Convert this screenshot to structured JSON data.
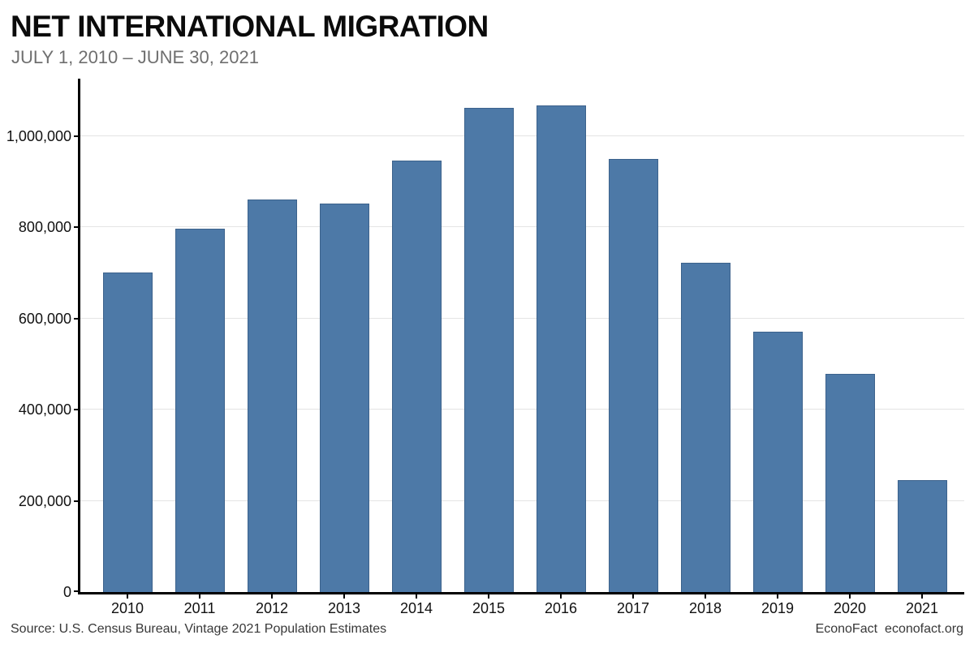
{
  "header": {
    "title": "NET INTERNATIONAL MIGRATION",
    "subtitle": "JULY 1, 2010 – JUNE 30, 2021"
  },
  "footer": {
    "source": "Source: U.S. Census Bureau, Vintage 2021 Population Estimates",
    "brand": "EconoFact",
    "site": "econofact.org"
  },
  "colors": {
    "bar": "#4d79a7",
    "bar_border": "#3c628c",
    "gridline": "#e4e4e4",
    "axis": "#000000",
    "subtitle_text": "#6f6f6f",
    "footer_text": "#383838"
  },
  "chart_data": {
    "type": "bar",
    "title": "NET INTERNATIONAL MIGRATION",
    "subtitle": "JULY 1, 2010 – JUNE 30, 2021",
    "categories": [
      "2010",
      "2011",
      "2012",
      "2013",
      "2014",
      "2015",
      "2016",
      "2017",
      "2018",
      "2019",
      "2020",
      "2021"
    ],
    "values": [
      700000,
      795000,
      860000,
      850000,
      945000,
      1060000,
      1065000,
      948000,
      720000,
      569000,
      477000,
      244000
    ],
    "xlabel": "",
    "ylabel": "",
    "ylim": [
      0,
      1124000
    ],
    "yticks": [
      {
        "value": 0,
        "label": "0"
      },
      {
        "value": 200000,
        "label": "200,000"
      },
      {
        "value": 400000,
        "label": "400,000"
      },
      {
        "value": 600000,
        "label": "600,000"
      },
      {
        "value": 800000,
        "label": "800,000"
      },
      {
        "value": 1000000,
        "label": "1,000,000"
      }
    ],
    "grid": true,
    "legend": false,
    "bar_color": "#4d79a7"
  }
}
